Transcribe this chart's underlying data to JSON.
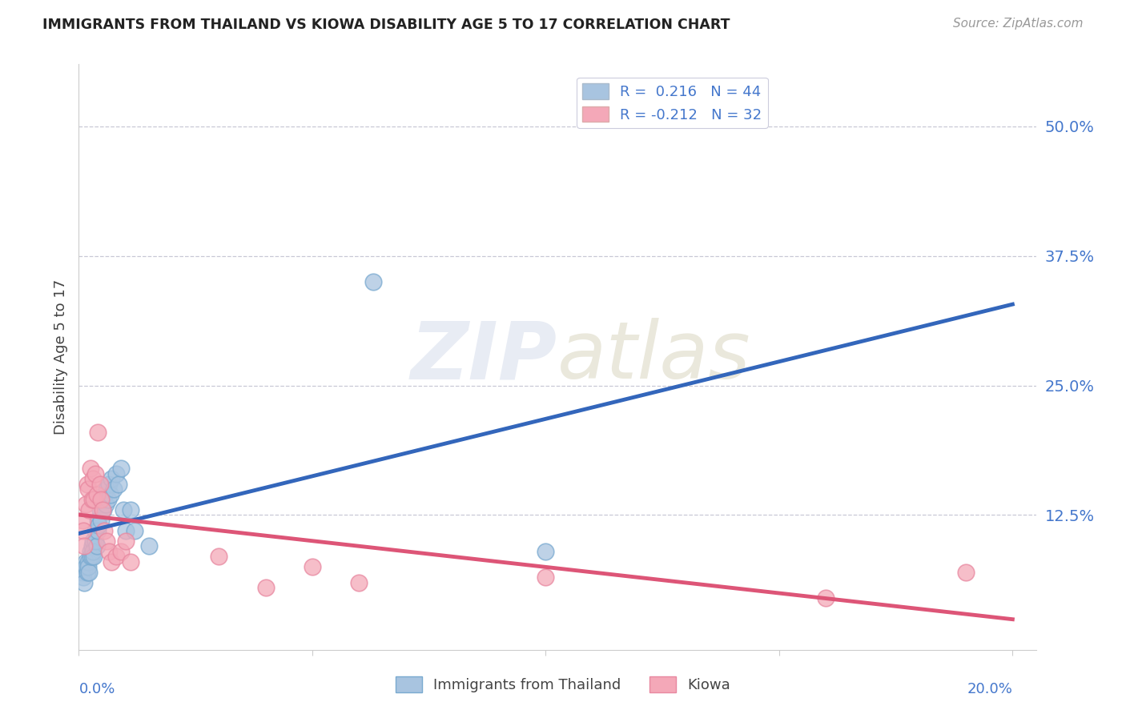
{
  "title": "IMMIGRANTS FROM THAILAND VS KIOWA DISABILITY AGE 5 TO 17 CORRELATION CHART",
  "source": "Source: ZipAtlas.com",
  "ylabel": "Disability Age 5 to 17",
  "right_yticks": [
    "50.0%",
    "37.5%",
    "25.0%",
    "12.5%"
  ],
  "right_ytick_vals": [
    0.5,
    0.375,
    0.25,
    0.125
  ],
  "legend1_label": "R =  0.216   N = 44",
  "legend2_label": "R = -0.212   N = 32",
  "legend_bottom1": "Immigrants from Thailand",
  "legend_bottom2": "Kiowa",
  "blue_color": "#A8C4E0",
  "pink_color": "#F4A8B8",
  "blue_edge_color": "#7AAAD0",
  "pink_edge_color": "#E888A0",
  "blue_line_color": "#3366BB",
  "pink_line_color": "#DD5577",
  "label_color": "#4477CC",
  "background_color": "#FFFFFF",
  "watermark_color": "#E8ECF4",
  "blue_scatter_x": [
    0.0008,
    0.001,
    0.0012,
    0.0015,
    0.0015,
    0.0018,
    0.002,
    0.002,
    0.0022,
    0.0025,
    0.0025,
    0.0028,
    0.0028,
    0.003,
    0.003,
    0.0032,
    0.0035,
    0.0035,
    0.0038,
    0.004,
    0.004,
    0.0042,
    0.0045,
    0.0048,
    0.005,
    0.0052,
    0.0055,
    0.0058,
    0.006,
    0.0062,
    0.0065,
    0.0068,
    0.007,
    0.0075,
    0.008,
    0.0085,
    0.009,
    0.0095,
    0.01,
    0.011,
    0.012,
    0.015,
    0.063,
    0.1
  ],
  "blue_scatter_y": [
    0.07,
    0.065,
    0.06,
    0.08,
    0.075,
    0.07,
    0.08,
    0.075,
    0.07,
    0.09,
    0.085,
    0.095,
    0.085,
    0.1,
    0.09,
    0.085,
    0.11,
    0.1,
    0.095,
    0.12,
    0.11,
    0.115,
    0.13,
    0.12,
    0.14,
    0.13,
    0.145,
    0.135,
    0.15,
    0.14,
    0.155,
    0.145,
    0.16,
    0.15,
    0.165,
    0.155,
    0.17,
    0.13,
    0.11,
    0.13,
    0.11,
    0.095,
    0.35,
    0.09
  ],
  "pink_scatter_x": [
    0.0008,
    0.001,
    0.0012,
    0.0015,
    0.0018,
    0.002,
    0.0022,
    0.0025,
    0.0028,
    0.003,
    0.0032,
    0.0035,
    0.0038,
    0.004,
    0.0045,
    0.0048,
    0.005,
    0.0055,
    0.006,
    0.0065,
    0.007,
    0.008,
    0.009,
    0.01,
    0.011,
    0.03,
    0.04,
    0.05,
    0.06,
    0.1,
    0.16,
    0.19
  ],
  "pink_scatter_y": [
    0.12,
    0.11,
    0.095,
    0.135,
    0.155,
    0.15,
    0.13,
    0.17,
    0.14,
    0.16,
    0.14,
    0.165,
    0.145,
    0.205,
    0.155,
    0.14,
    0.13,
    0.11,
    0.1,
    0.09,
    0.08,
    0.085,
    0.09,
    0.1,
    0.08,
    0.085,
    0.055,
    0.075,
    0.06,
    0.065,
    0.045,
    0.07
  ],
  "xlim": [
    0.0,
    0.205
  ],
  "ylim": [
    -0.005,
    0.56
  ],
  "xmin": 0.0,
  "xmax": 0.2
}
